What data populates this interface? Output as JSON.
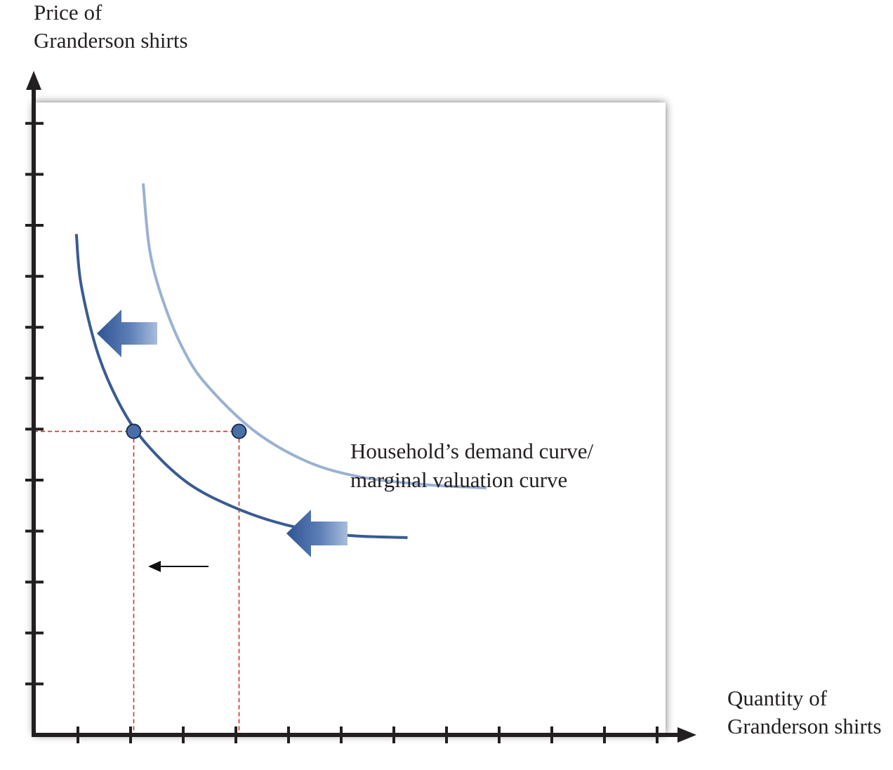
{
  "chart_data": {
    "type": "line",
    "title": "",
    "ylabel_lines": [
      "Price of",
      "Granderson shirts"
    ],
    "xlabel_lines": [
      "Quantity of",
      "Granderson shirts"
    ],
    "curve_label_lines": [
      "Household’s demand curve/",
      "marginal valuation curve"
    ],
    "x_tick_count": 12,
    "y_tick_count": 12,
    "tick_labels_shown": false,
    "grid": false,
    "series": [
      {
        "role": "original demand curve (lighter, right)",
        "color": "#9bb1d3",
        "points": [
          [
            2.08,
            10.9
          ],
          [
            2.2,
            9.6
          ],
          [
            2.45,
            8.6
          ],
          [
            2.85,
            7.6
          ],
          [
            3.3,
            6.9
          ],
          [
            4.2,
            6.0
          ],
          [
            5.2,
            5.4
          ],
          [
            6.2,
            5.1
          ],
          [
            7.4,
            4.95
          ],
          [
            8.6,
            4.88
          ]
        ]
      },
      {
        "role": "shifted demand curve (darker, left)",
        "color": "#3a5b92",
        "points": [
          [
            0.81,
            9.9
          ],
          [
            0.9,
            8.9
          ],
          [
            1.2,
            7.6
          ],
          [
            1.6,
            6.6
          ],
          [
            2.1,
            5.8
          ],
          [
            2.9,
            5.0
          ],
          [
            3.8,
            4.5
          ],
          [
            4.8,
            4.15
          ],
          [
            5.9,
            3.95
          ],
          [
            7.1,
            3.9
          ]
        ]
      }
    ],
    "points": [
      {
        "x": 1.9,
        "y": 6.0,
        "color": "#4a6ea8"
      },
      {
        "x": 3.9,
        "y": 6.0,
        "color": "#4a6ea8"
      }
    ],
    "reference_lines": {
      "color": "#d22f2f",
      "style": "dashed",
      "horizontal_y": 6.0,
      "vertical_x": [
        1.9,
        3.9
      ]
    },
    "arrows": [
      {
        "kind": "block",
        "direction": "left",
        "color": "#3f62a0",
        "near": "upper shift arrow"
      },
      {
        "kind": "block",
        "direction": "left",
        "color": "#3f62a0",
        "near": "lower shift arrow"
      },
      {
        "kind": "line",
        "direction": "left",
        "color": "#111111",
        "meaning": "quantity decreases"
      }
    ],
    "colors": {
      "axis": "#231f20",
      "panel": "#ffffff",
      "shadow": "#9a9a9a"
    },
    "xlim": [
      0,
      12
    ],
    "ylim": [
      0,
      12.5
    ]
  }
}
